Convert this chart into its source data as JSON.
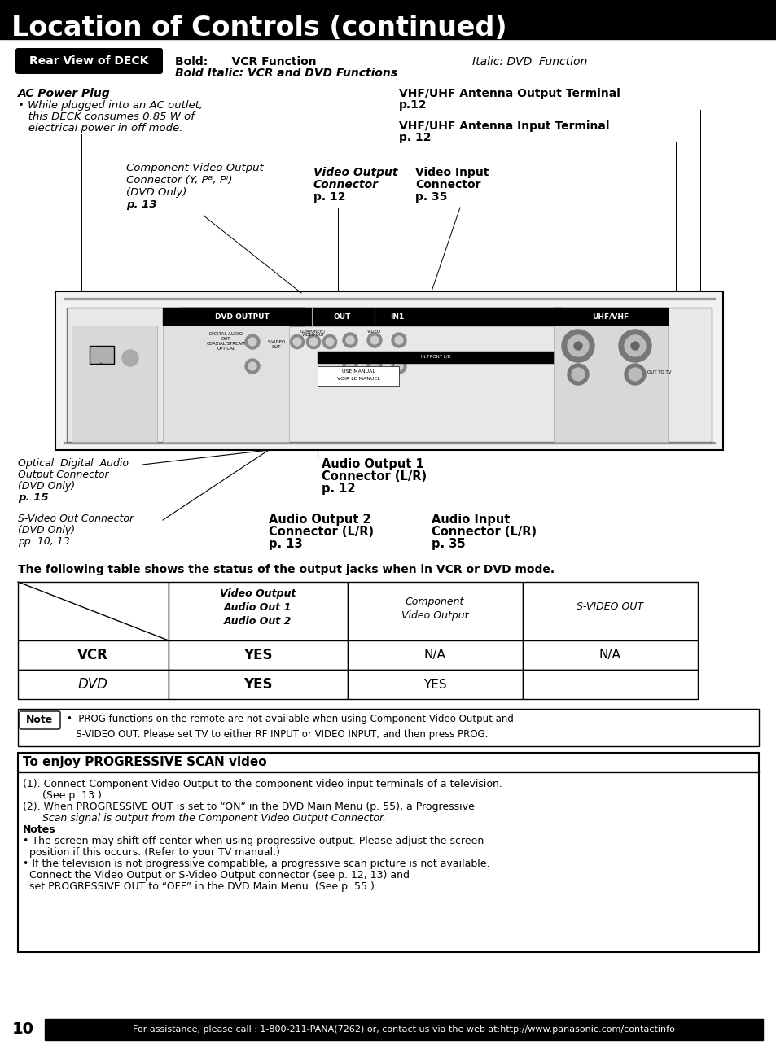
{
  "title": "Location of Controls (continued)",
  "title_bg": "#000000",
  "title_color": "#ffffff",
  "page_bg": "#ffffff",
  "rear_view_label": "Rear View of DECK",
  "bold_line1": "Bold:      VCR Function",
  "bold_line2": "Bold Italic: VCR and DVD Functions",
  "italic_label": "Italic: DVD  Function",
  "ac_power_title": "AC Power Plug",
  "ac_power_bullet": "• While plugged into an AC outlet,",
  "ac_power_line2": "   this DECK consumes 0.85 W of",
  "ac_power_line3": "   electrical power in off mode.",
  "vhf_out_line1": "VHF/UHF Antenna Output Terminal",
  "vhf_out_line2": "p.12",
  "vhf_in_line1": "VHF/UHF Antenna Input Terminal",
  "vhf_in_line2": "p. 12",
  "comp_line1": "Component Video Output",
  "comp_line2": "Connector (Y, Pᴮ, Pᴵ)",
  "comp_line3": "(DVD Only)",
  "comp_line4": "p. 13",
  "vidout_line1": "Video Output",
  "vidout_line2": "Connector",
  "vidout_line3": "p. 12",
  "vidin_line1": "Video Input",
  "vidin_line2": "Connector",
  "vidin_line3": "p. 35",
  "optical_line1": "Optical  Digital  Audio",
  "optical_line2": "Output Connector",
  "optical_line3": "(DVD Only)",
  "optical_line4": "p. 15",
  "audio_out1_line1": "Audio Output 1",
  "audio_out1_line2": "Connector (L/R)",
  "audio_out1_line3": "p. 12",
  "svideo_line1": "S-Video Out Connector",
  "svideo_line2": "(DVD Only)",
  "svideo_line3": "pp. 10, 13",
  "audio_out2_line1": "Audio Output 2",
  "audio_out2_line2": "Connector (L/R)",
  "audio_out2_line3": "p. 13",
  "audio_in_line1": "Audio Input",
  "audio_in_line2": "Connector (L/R)",
  "audio_in_line3": "p. 35",
  "table_header": "The following table shows the status of the output jacks when in VCR or DVD mode.",
  "note_text": "•  PROG functions on the remote are not available when using Component Video Output and\n   S-VIDEO OUT. Please set TV to either RF INPUT or VIDEO INPUT, and then press PROG.",
  "prog_title": "To enjoy PROGRESSIVE SCAN video",
  "prog_line1": "(1). Connect Component Video Output to the component video input terminals of a television.",
  "prog_line1b": "      (See p. 13.)",
  "prog_line2": "(2). When PROGRESSIVE OUT is set to “ON” in the DVD Main Menu (p. 55), a Progressive",
  "prog_line2b": "      Scan signal is output from the Component Video Output Connector.",
  "prog_notes_title": "Notes",
  "prog_note1": "• The screen may shift off-center when using progressive output. Please adjust the screen",
  "prog_note1b": "  position if this occurs. (Refer to your TV manual.)",
  "prog_note2": "• If the television is not progressive compatible, a progressive scan picture is not available.",
  "prog_note2b": "  Connect the Video Output or S-Video Output connector (see p. 12, 13) and",
  "prog_note2c": "  set PROGRESSIVE OUT to “OFF” in the DVD Main Menu. (See p. 55.)",
  "footer_text": "For assistance, please call : 1-800-211-PANA(7262) or, contact us via the web at:http://www.panasonic.com/contactinfo",
  "page_number": "10"
}
